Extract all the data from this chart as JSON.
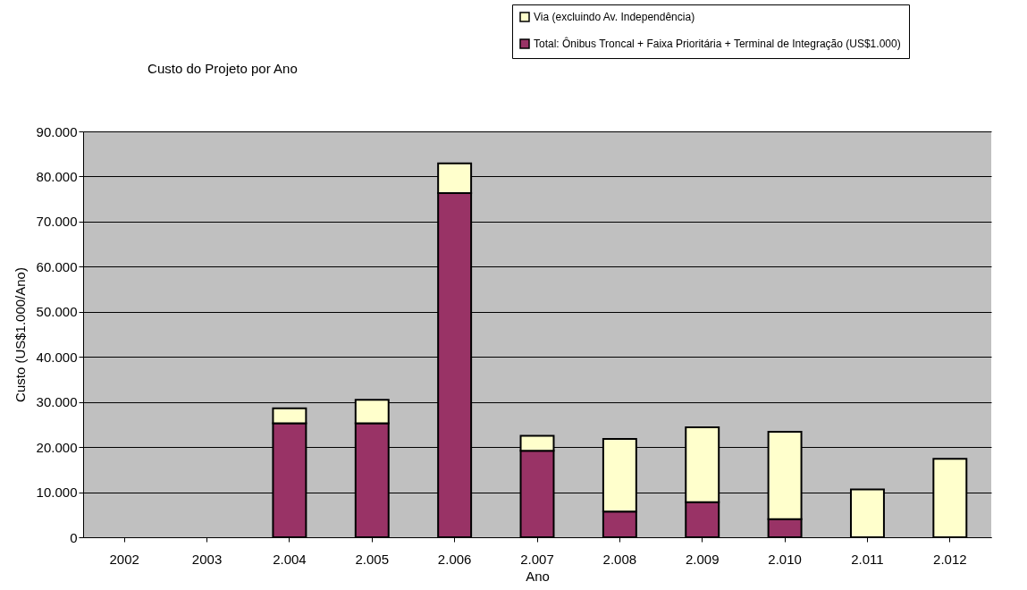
{
  "chart_data": {
    "type": "bar",
    "title": "Custo do Projeto por Ano",
    "xlabel": "Ano",
    "ylabel": "Custo (US$1.000/Ano)",
    "categories": [
      "2002",
      "2003",
      "2.004",
      "2.005",
      "2.006",
      "2.007",
      "2.008",
      "2.009",
      "2.010",
      "2.011",
      "2.012"
    ],
    "stacked": true,
    "series": [
      {
        "name": "Total: Ônibus Troncal + Faixa Prioritária + Terminal de Integração (US$1.000)",
        "color": "#993366",
        "values": [
          null,
          null,
          25300,
          25300,
          76300,
          19200,
          5700,
          7800,
          4000,
          null,
          null
        ]
      },
      {
        "name": "Via (excluindo Av. Independência)",
        "color": "#ffffcc",
        "values": [
          null,
          null,
          3300,
          5200,
          6600,
          3300,
          16100,
          16600,
          19400,
          10600,
          17400
        ]
      }
    ],
    "ylim": [
      0,
      90000
    ],
    "yticks": [
      0,
      {
        "value": 10000,
        "label": "10.000"
      },
      {
        "value": 20000,
        "label": "20.000"
      },
      {
        "value": 30000,
        "label": "30.000"
      },
      {
        "value": 40000,
        "label": "40.000"
      },
      {
        "value": 50000,
        "label": "50.000"
      },
      {
        "value": 60000,
        "label": "60.000"
      },
      {
        "value": 70000,
        "label": "70.000"
      },
      {
        "value": 80000,
        "label": "80.000"
      },
      {
        "value": 90000,
        "label": "90.000"
      }
    ],
    "grid": "y",
    "legend": "top right"
  }
}
